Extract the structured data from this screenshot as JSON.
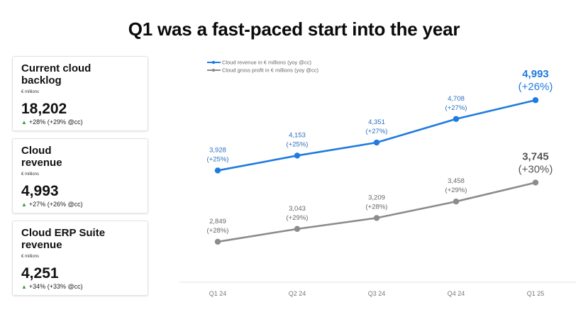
{
  "title": "Q1 was a fast-paced start into the year",
  "kpis": [
    {
      "label": "Current cloud backlog",
      "unit": "€ millions",
      "value": "18,202",
      "change": "+28% (+29% @cc)"
    },
    {
      "label": "Cloud revenue",
      "unit": "€ millions",
      "value": "4,993",
      "change": "+27% (+26% @cc)"
    },
    {
      "label": "Cloud ERP Suite revenue",
      "unit": "€ millions",
      "value": "4,251",
      "change": "+34% (+33% @cc)"
    }
  ],
  "colors": {
    "revenue": "#1f7be0",
    "gross_profit": "#8c8c8c",
    "up": "#2e9a3a"
  },
  "chart_data": {
    "type": "line",
    "categories": [
      "Q1 24",
      "Q2 24",
      "Q3 24",
      "Q4 24",
      "Q1 25"
    ],
    "legend_position": "top-left",
    "grid": false,
    "ylim": [
      2000,
      5500
    ],
    "series": [
      {
        "name": "Cloud revenue in € millions (yoy @cc)",
        "values": [
          3928,
          4153,
          4351,
          4708,
          4993
        ],
        "labels": [
          "3,928",
          "4,153",
          "4,351",
          "4,708",
          "4,993"
        ],
        "changes": [
          "(+25%)",
          "(+25%)",
          "(+27%)",
          "(+27%)",
          "(+26%)"
        ]
      },
      {
        "name": "Cloud gross profit in € millions (yoy @cc)",
        "values": [
          2849,
          3043,
          3209,
          3458,
          3745
        ],
        "labels": [
          "2,849",
          "3,043",
          "3,209",
          "3,458",
          "3,745"
        ],
        "changes": [
          "(+28%)",
          "(+29%)",
          "(+28%)",
          "(+29%)",
          "(+30%)"
        ]
      }
    ]
  }
}
